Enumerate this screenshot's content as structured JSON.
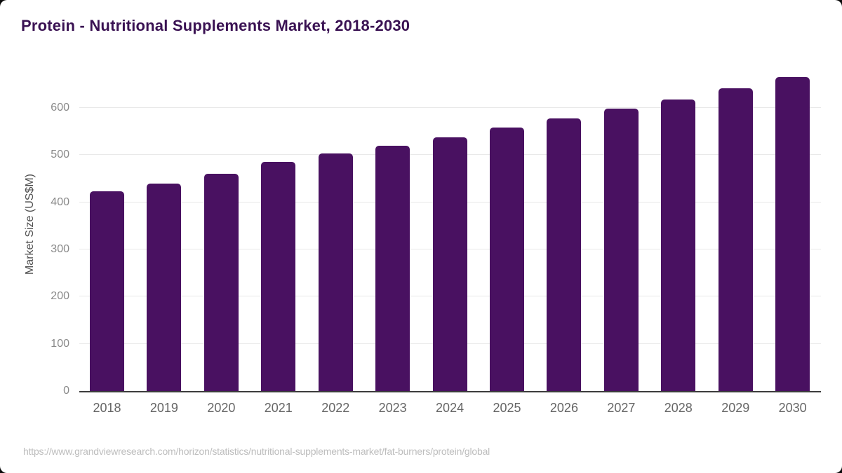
{
  "page": {
    "title": "Protein - Nutritional Supplements Market, 2018-2030",
    "source_url": "https://www.grandviewresearch.com/horizon/statistics/nutritional-supplements-market/fat-burners/protein/global"
  },
  "chart_data": {
    "type": "bar",
    "title": "Protein - Nutritional Supplements Market, 2018-2030",
    "categories": [
      "2018",
      "2019",
      "2020",
      "2021",
      "2022",
      "2023",
      "2024",
      "2025",
      "2026",
      "2027",
      "2028",
      "2029",
      "2030"
    ],
    "values": [
      423,
      439,
      461,
      486,
      503,
      520,
      538,
      558,
      577,
      598,
      618,
      641,
      665
    ],
    "xlabel": "",
    "ylabel": "Market Size (US$M)",
    "y_ticks": [
      0,
      100,
      200,
      300,
      400,
      500,
      600
    ],
    "ylim": [
      0,
      680
    ],
    "grid": "horizontal",
    "legend": "none"
  },
  "colors": {
    "bar": "#491161",
    "title": "#3a1253",
    "y_tick_label": "#8a8a8a",
    "x_tick_label": "#666666",
    "y_axis_title": "#4f4f4f",
    "gridline": "#e9e9e9",
    "axis_line": "#3c3c3c",
    "source_url": "#bdbdbd",
    "background": "#ffffff"
  }
}
